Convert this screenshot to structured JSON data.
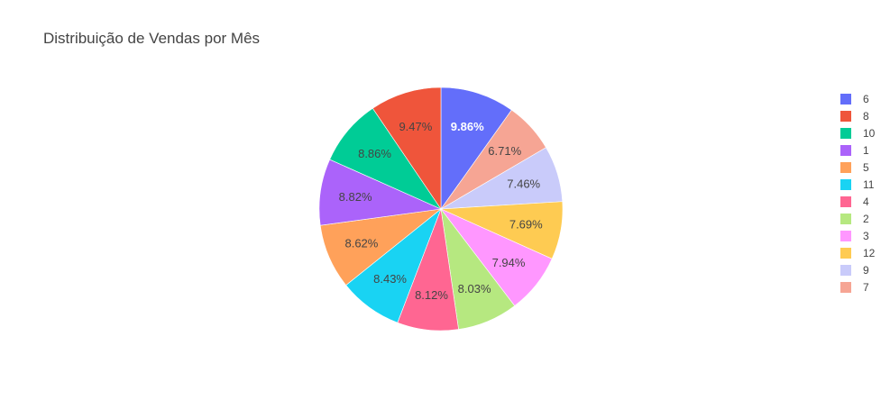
{
  "chart_data": {
    "type": "pie",
    "title": "Distribuição de Vendas por Mês",
    "slices": [
      {
        "label": "6",
        "percent": 9.86,
        "display": "9.86%",
        "color": "#636efa",
        "label_color": "#ffffff"
      },
      {
        "label": "7",
        "percent": 6.71,
        "display": "6.71%",
        "color": "#f6a594",
        "label_color": "#444444"
      },
      {
        "label": "9",
        "percent": 7.46,
        "display": "7.46%",
        "color": "#c9cbfa",
        "label_color": "#444444"
      },
      {
        "label": "12",
        "percent": 7.69,
        "display": "7.69%",
        "color": "#fecb52",
        "label_color": "#444444"
      },
      {
        "label": "3",
        "percent": 7.94,
        "display": "7.94%",
        "color": "#ff97ff",
        "label_color": "#444444"
      },
      {
        "label": "2",
        "percent": 8.03,
        "display": "8.03%",
        "color": "#b6e880",
        "label_color": "#444444"
      },
      {
        "label": "4",
        "percent": 8.12,
        "display": "8.12%",
        "color": "#ff6692",
        "label_color": "#444444"
      },
      {
        "label": "11",
        "percent": 8.43,
        "display": "8.43%",
        "color": "#19d3f3",
        "label_color": "#444444"
      },
      {
        "label": "5",
        "percent": 8.62,
        "display": "8.62%",
        "color": "#ffa15a",
        "label_color": "#444444"
      },
      {
        "label": "1",
        "percent": 8.82,
        "display": "8.82%",
        "color": "#ab63fa",
        "label_color": "#444444"
      },
      {
        "label": "10",
        "percent": 8.86,
        "display": "8.86%",
        "color": "#00cc96",
        "label_color": "#444444"
      },
      {
        "label": "8",
        "percent": 9.47,
        "display": "9.47%",
        "color": "#ef553b",
        "label_color": "#444444"
      }
    ],
    "legend_order": [
      "6",
      "8",
      "10",
      "1",
      "5",
      "11",
      "4",
      "2",
      "3",
      "12",
      "9",
      "7"
    ],
    "legend_position": "right"
  }
}
